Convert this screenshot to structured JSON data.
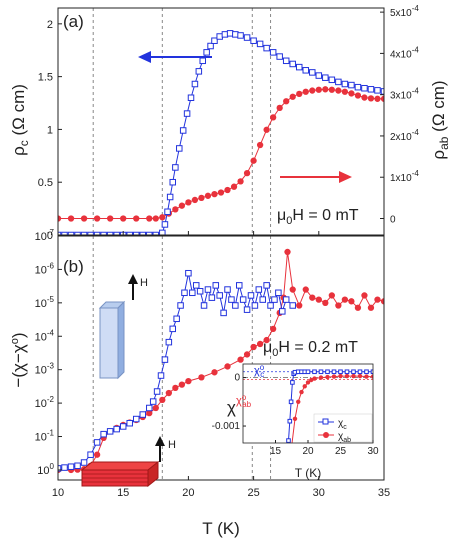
{
  "chart_data": [
    {
      "type": "line",
      "panel_label": "(a)",
      "annotation": "μ0H = 0 mT",
      "xlabel": "T (K)",
      "xlim": [
        10,
        35
      ],
      "x_ticks": [
        "10",
        "15",
        "20",
        "25",
        "30",
        "35"
      ],
      "ylabel_left": "ρc (Ω cm)",
      "ylim_left": [
        0,
        2.15
      ],
      "y_ticks_left": [
        "0",
        "0.5",
        "1",
        "1.5",
        "2"
      ],
      "ylabel_right": "ρab (Ω cm)",
      "ylim_right": [
        -4e-05,
        0.00051
      ],
      "y_ticks_right": [
        "0",
        "1x10-4",
        "2x10-4",
        "3x10-4",
        "4x10-4",
        "5x10-4"
      ],
      "vlines": [
        12.7,
        18.0,
        24.9,
        26.3
      ],
      "series": [
        {
          "name": "ρc",
          "axis": "left",
          "color": "#2233dd",
          "marker": "open-square",
          "x": [
            10,
            10.5,
            11,
            11.5,
            12,
            12.5,
            13,
            13.5,
            14,
            14.5,
            15,
            15.5,
            16,
            16.5,
            17,
            17.5,
            18,
            18.2,
            18.4,
            18.6,
            18.8,
            19,
            19.3,
            19.6,
            19.9,
            20.2,
            20.5,
            20.8,
            21.1,
            21.4,
            21.7,
            22,
            22.4,
            22.8,
            23.2,
            23.6,
            24,
            24.5,
            25,
            25.5,
            26,
            26.5,
            27,
            27.5,
            28,
            28.5,
            29,
            29.5,
            30,
            30.5,
            31,
            31.5,
            32,
            32.5,
            33,
            33.5,
            34,
            34.5,
            35
          ],
          "y": [
            0,
            0,
            0,
            0,
            0,
            0,
            0,
            0,
            0,
            0,
            0,
            0,
            0,
            0,
            0,
            0,
            0.02,
            0.1,
            0.22,
            0.36,
            0.5,
            0.64,
            0.82,
            0.99,
            1.15,
            1.3,
            1.43,
            1.55,
            1.65,
            1.73,
            1.79,
            1.84,
            1.88,
            1.9,
            1.91,
            1.9,
            1.89,
            1.87,
            1.84,
            1.81,
            1.77,
            1.73,
            1.69,
            1.65,
            1.62,
            1.59,
            1.56,
            1.54,
            1.51,
            1.49,
            1.47,
            1.45,
            1.43,
            1.42,
            1.4,
            1.39,
            1.38,
            1.37,
            1.36
          ]
        },
        {
          "name": "ρab",
          "axis": "right",
          "color": "#e8323c",
          "marker": "filled-circle",
          "x": [
            10,
            11,
            12,
            13,
            14,
            15,
            16,
            17,
            17.5,
            18,
            18.5,
            19,
            19.5,
            20,
            20.5,
            21,
            21.5,
            22,
            22.5,
            23,
            23.5,
            24,
            24.5,
            25,
            25.5,
            26,
            26.5,
            27,
            27.5,
            28,
            28.5,
            29,
            29.5,
            30,
            30.5,
            31,
            31.5,
            32,
            32.5,
            33,
            33.5,
            34,
            34.5,
            35
          ],
          "y": [
            0,
            0,
            0,
            0,
            0,
            0,
            0,
            0,
            0,
            3e-06,
            1.2e-05,
            2.2e-05,
            3.1e-05,
            3.9e-05,
            4.5e-05,
            5e-05,
            5.5e-05,
            5.9e-05,
            6.3e-05,
            6.9e-05,
            7.7e-05,
            9e-05,
            0.00011,
            0.00014,
            0.000178,
            0.000215,
            0.000245,
            0.000268,
            0.000284,
            0.000295,
            0.000302,
            0.000307,
            0.00031,
            0.000312,
            0.000313,
            0.000312,
            0.00031,
            0.000307,
            0.000303,
            0.000298,
            0.000293,
            0.000291,
            0.00029,
            0.00029
          ]
        }
      ]
    },
    {
      "type": "line",
      "panel_label": "(b)",
      "annotation": "μ0H = 0.2 mT",
      "field_label_top": "H",
      "field_label_bottom": "H",
      "xlabel": "T (K)",
      "xlim": [
        10,
        35
      ],
      "x_ticks": [
        "10",
        "15",
        "20",
        "25",
        "30",
        "35"
      ],
      "ylabel": "−(χ−χo)",
      "y_scale": "log",
      "y_inverted": true,
      "ylim": [
        1e-07,
        2
      ],
      "y_ticks": [
        "10-7",
        "10-6",
        "10-5",
        "10-4",
        "10-3",
        "10-2",
        "10-1",
        "100"
      ],
      "vlines": [
        12.7,
        18.0,
        24.9,
        26.3
      ],
      "series": [
        {
          "name": "χc",
          "color": "#2233dd",
          "marker": "open-square",
          "x": [
            10,
            10.5,
            11,
            11.5,
            12,
            12.5,
            13,
            13.5,
            14,
            14.5,
            15,
            15.5,
            16,
            16.5,
            17,
            17.3,
            17.6,
            17.9,
            18.2,
            18.5,
            18.8,
            19.1,
            19.4,
            19.7,
            20,
            20.3,
            20.6,
            20.9,
            21.2,
            21.5,
            21.8,
            22.1,
            22.4,
            22.7,
            23,
            23.3,
            23.6,
            23.9,
            24.2,
            24.5,
            24.8,
            25.1,
            25.4,
            25.7,
            26,
            26.3,
            26.6,
            26.9,
            27.2,
            27.5,
            28
          ],
          "y": [
            0.9,
            0.85,
            0.8,
            0.75,
            0.6,
            0.35,
            0.15,
            0.085,
            0.07,
            0.06,
            0.05,
            0.04,
            0.03,
            0.022,
            0.014,
            0.009,
            0.0045,
            0.0015,
            0.0005,
            0.00015,
            6e-05,
            3e-05,
            1.2e-05,
            5e-06,
            1.3e-06,
            5e-06,
            3e-06,
            4.5e-06,
            1.2e-05,
            4e-06,
            7e-06,
            3e-06,
            6e-06,
            2e-05,
            4e-06,
            8e-06,
            1.2e-05,
            3e-06,
            8e-06,
            1.6e-05,
            6e-06,
            1.2e-05,
            4e-06,
            8e-06,
            3e-06,
            1.2e-05,
            8e-06,
            5e-06,
            1.8e-05,
            8e-06,
            1.2e-05
          ]
        },
        {
          "name": "χab",
          "color": "#e8323c",
          "marker": "filled-circle",
          "x": [
            10,
            11,
            11.5,
            12,
            12.5,
            13,
            13.5,
            14,
            14.5,
            15,
            15.5,
            16,
            16.5,
            17,
            17.5,
            18,
            18.5,
            19,
            19.5,
            20,
            21,
            22,
            23,
            24,
            24.5,
            25,
            25.5,
            26,
            26.5,
            27,
            27.3,
            27.6,
            28,
            28.5,
            29,
            29.5,
            30,
            30.5,
            31,
            31.5,
            32,
            32.5,
            33,
            33.5,
            34,
            34.5,
            35
          ],
          "y": [
            1.0,
            1.0,
            0.98,
            0.95,
            0.75,
            0.35,
            0.11,
            0.07,
            0.055,
            0.045,
            0.038,
            0.032,
            0.026,
            0.02,
            0.014,
            0.008,
            0.005,
            0.0035,
            0.0028,
            0.0022,
            0.0017,
            0.0012,
            0.0008,
            0.0005,
            0.00035,
            0.00021,
            0.00017,
            0.00013,
            6e-05,
            2e-05,
            7e-06,
            3e-07,
            4e-06,
            1.2e-05,
            4e-06,
            7e-06,
            8e-06,
            1e-05,
            6e-06,
            1.2e-05,
            8e-06,
            9e-06,
            1.4e-05,
            6e-06,
            1.4e-05,
            8e-06,
            9e-06
          ]
        }
      ]
    },
    {
      "type": "line",
      "panel_label": "inset",
      "xlabel": "T (K)",
      "xlim": [
        10,
        30
      ],
      "x_ticks": [
        "15",
        "20",
        "25",
        "30"
      ],
      "ylabel": "χ",
      "ylim": [
        -0.00135,
        0.00028
      ],
      "y_ticks": [
        "0",
        "-0.001"
      ],
      "hline_annotations": [
        {
          "label": "χoc",
          "value": 0.00012,
          "color": "#2233dd"
        },
        {
          "label": "χoab",
          "value": -4e-05,
          "color": "#e8323c"
        }
      ],
      "series": [
        {
          "name": "χc",
          "color": "#2233dd",
          "marker": "open-square",
          "x": [
            10,
            11,
            12,
            13,
            14,
            15,
            16,
            16.5,
            17,
            17.2,
            17.4,
            17.6,
            17.8,
            18,
            18.5,
            19,
            19.5,
            20,
            21,
            22,
            23,
            24,
            25,
            26,
            27,
            28,
            29,
            30
          ],
          "y": [
            -0.0014,
            -0.0014,
            -0.0014,
            -0.0014,
            -0.0014,
            -0.0014,
            -0.0014,
            -0.0014,
            -0.0013,
            -0.0009,
            -0.0005,
            -0.0001,
            8e-05,
            0.00011,
            0.00012,
            0.00012,
            0.00012,
            0.00012,
            0.00012,
            0.00012,
            0.00012,
            0.00012,
            0.00012,
            0.00012,
            0.00012,
            0.00012,
            0.00012,
            0.00012
          ]
        },
        {
          "name": "χab",
          "color": "#e8323c",
          "marker": "filled-circle",
          "x": [
            17.5,
            18,
            18.5,
            19,
            19.5,
            20,
            20.5,
            21,
            22,
            23,
            24,
            25,
            26,
            27,
            28,
            29,
            30
          ],
          "y": [
            -0.0014,
            -0.00085,
            -0.0005,
            -0.0003,
            -0.00018,
            -0.0001,
            -5e-05,
            -2e-05,
            0,
            1e-05,
            2e-05,
            3e-05,
            3e-05,
            3e-05,
            3e-05,
            2e-05,
            2e-05
          ]
        }
      ]
    }
  ]
}
